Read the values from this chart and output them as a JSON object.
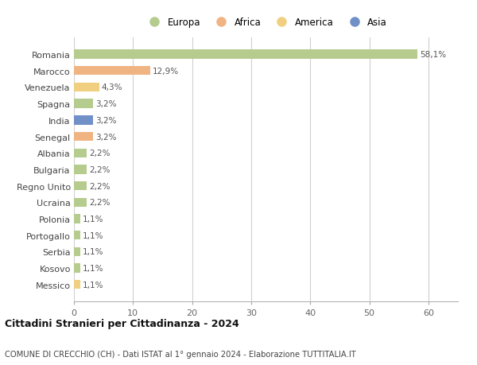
{
  "countries": [
    "Romania",
    "Marocco",
    "Venezuela",
    "Spagna",
    "India",
    "Senegal",
    "Albania",
    "Bulgaria",
    "Regno Unito",
    "Ucraina",
    "Polonia",
    "Portogallo",
    "Serbia",
    "Kosovo",
    "Messico"
  ],
  "values": [
    58.1,
    12.9,
    4.3,
    3.2,
    3.2,
    3.2,
    2.2,
    2.2,
    2.2,
    2.2,
    1.1,
    1.1,
    1.1,
    1.1,
    1.1
  ],
  "labels": [
    "58,1%",
    "12,9%",
    "4,3%",
    "3,2%",
    "3,2%",
    "3,2%",
    "2,2%",
    "2,2%",
    "2,2%",
    "2,2%",
    "1,1%",
    "1,1%",
    "1,1%",
    "1,1%",
    "1,1%"
  ],
  "continents": [
    "Europa",
    "Africa",
    "America",
    "Europa",
    "Asia",
    "Africa",
    "Europa",
    "Europa",
    "Europa",
    "Europa",
    "Europa",
    "Europa",
    "Europa",
    "Europa",
    "America"
  ],
  "colors": {
    "Europa": "#b5cc8e",
    "Africa": "#f0b482",
    "America": "#f0d080",
    "Asia": "#7090c8"
  },
  "legend_order": [
    "Europa",
    "Africa",
    "America",
    "Asia"
  ],
  "legend_colors": [
    "#b5cc8e",
    "#f0b482",
    "#f0d080",
    "#7090c8"
  ],
  "title": "Cittadini Stranieri per Cittadinanza - 2024",
  "subtitle": "COMUNE DI CRECCHIO (CH) - Dati ISTAT al 1° gennaio 2024 - Elaborazione TUTTITALIA.IT",
  "xlim": [
    0,
    65
  ],
  "xticks": [
    0,
    10,
    20,
    30,
    40,
    50,
    60
  ],
  "bg_color": "#ffffff",
  "grid_color": "#d0d0d0",
  "bar_height": 0.55
}
